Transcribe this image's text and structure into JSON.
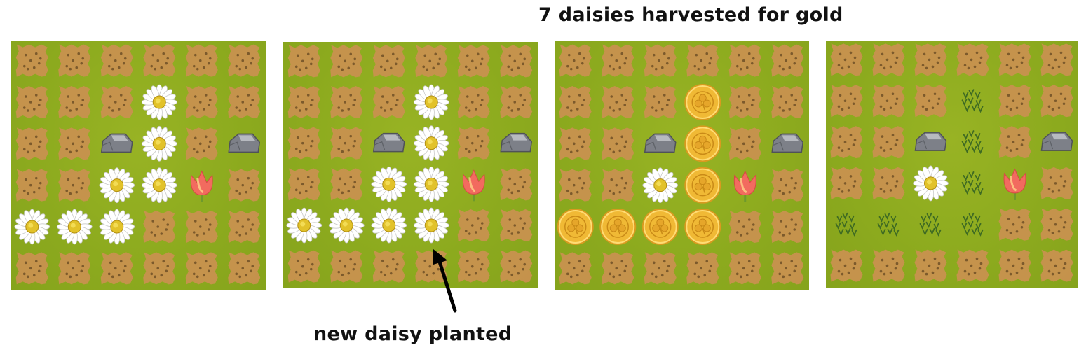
{
  "captions": {
    "top": "7 daisies harvested for gold",
    "bottom": "new daisy planted"
  },
  "legend": {
    "D": "daisy",
    "T": "tulip",
    "R": "rock",
    "G": "gold-coin",
    "S": "sprout",
    ".": "soil"
  },
  "colors": {
    "grass": "#8caa1e",
    "soil": "#c8914f",
    "soil_dark": "#7c5a2c",
    "daisy_petal": "#ffffff",
    "daisy_center": "#e2c22a",
    "tulip": "#f26b5f",
    "rock": "#7d8088",
    "gold": "#f0b935",
    "sprout": "#3f6b23"
  },
  "boards": [
    {
      "name": "board-1",
      "rows": [
        "......",
        "...D..",
        "..RD.R",
        "..DDT.",
        "DDD...",
        "......"
      ]
    },
    {
      "name": "board-2",
      "rows": [
        "......",
        "...D..",
        "..RD.R",
        "..DDT.",
        "DDDD..",
        "......"
      ]
    },
    {
      "name": "board-3",
      "rows": [
        "......",
        "...G..",
        "..RG.R",
        "..DGT.",
        "GGGG..",
        "......"
      ]
    },
    {
      "name": "board-4",
      "rows": [
        "......",
        "...S..",
        "..RS.R",
        "..DST.",
        "SSSS..",
        "......"
      ]
    }
  ]
}
